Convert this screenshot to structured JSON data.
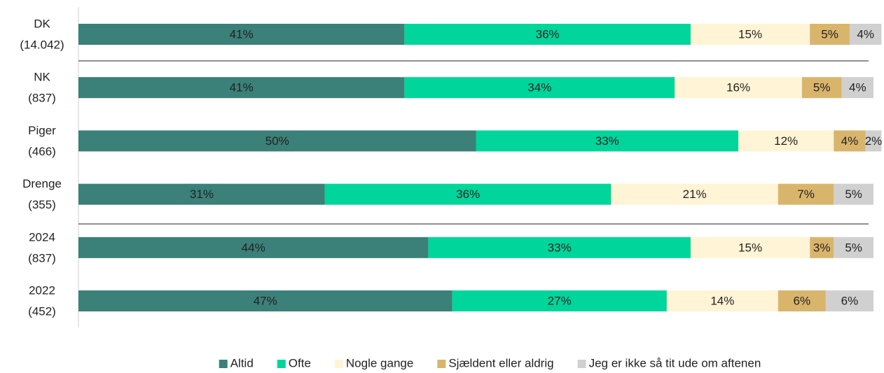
{
  "chart_data": {
    "type": "stacked-bar-horizontal",
    "categories": [
      [
        "DK",
        "(14.042)"
      ],
      [
        "NK",
        "(837)"
      ],
      [
        "Piger",
        "(466)"
      ],
      [
        "Drenge",
        "(355)"
      ],
      [
        "2024",
        "(837)"
      ],
      [
        "2022",
        "(452)"
      ]
    ],
    "xlim": [
      0,
      100
    ],
    "legend": "bottom",
    "series": [
      {
        "name": "Altid",
        "color": "#3b8079",
        "values": [
          41,
          41,
          50,
          31,
          44,
          47
        ],
        "value_labels": [
          "41%",
          "41%",
          "50%",
          "31%",
          "44%",
          "47%"
        ]
      },
      {
        "name": "Ofte",
        "color": "#00d59b",
        "values": [
          36,
          34,
          33,
          36,
          33,
          27
        ],
        "value_labels": [
          "36%",
          "34%",
          "33%",
          "36%",
          "33%",
          "27%"
        ]
      },
      {
        "name": "Nogle gange",
        "color": "#fff4d5",
        "values": [
          15,
          16,
          12,
          21,
          15,
          14
        ],
        "value_labels": [
          "15%",
          "16%",
          "12%",
          "21%",
          "15%",
          "14%"
        ]
      },
      {
        "name": "Sjældent eller aldrig",
        "color": "#d9b56c",
        "values": [
          5,
          5,
          4,
          7,
          3,
          6
        ],
        "value_labels": [
          "5%",
          "5%",
          "4%",
          "7%",
          "3%",
          "6%"
        ]
      },
      {
        "name": "Jeg er ikke så tit ude om aftenen",
        "color": "#d0d0d0",
        "values": [
          4,
          4,
          2,
          5,
          5,
          6
        ],
        "value_labels": [
          "4%",
          "4%",
          "2%",
          "5%",
          "5%",
          "6%"
        ]
      }
    ]
  }
}
